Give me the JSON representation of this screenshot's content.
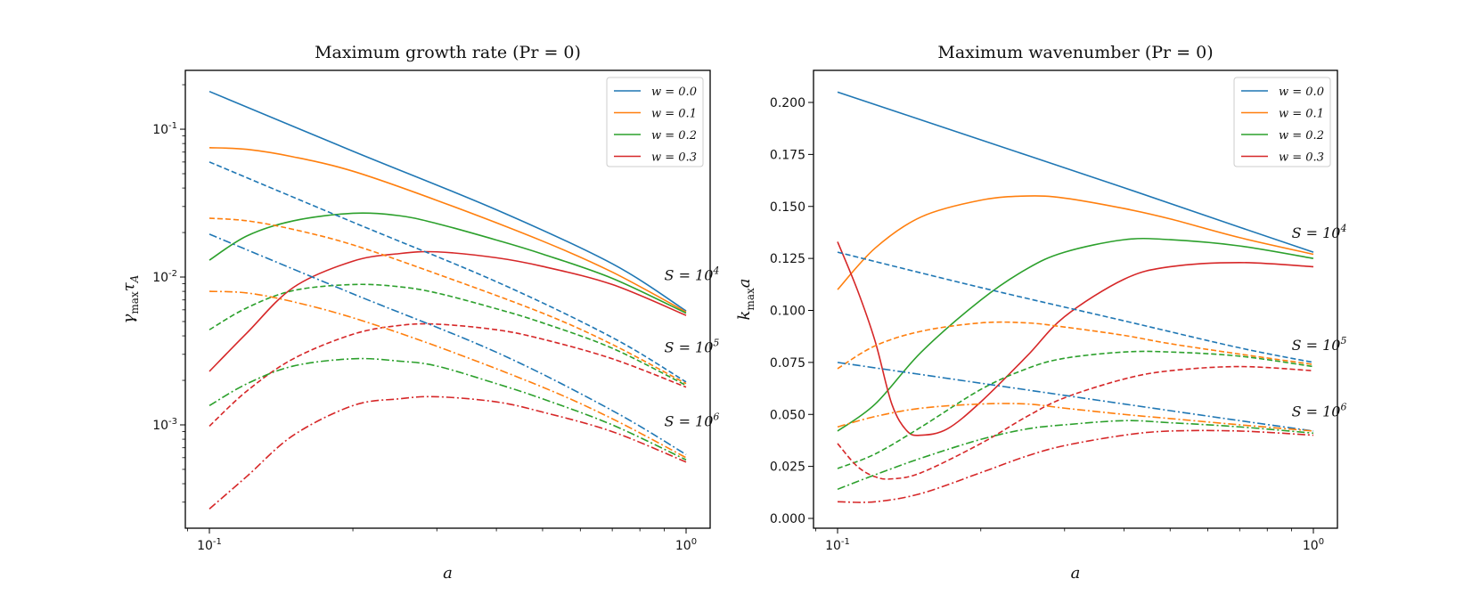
{
  "chart_data": [
    {
      "type": "line",
      "title": "Maximum growth rate (Pr = 0)",
      "xlabel": "a",
      "ylabel": "γmax τA",
      "xscale": "log",
      "yscale": "log",
      "xlim": [
        0.1,
        1.0
      ],
      "ylim": [
        0.0002,
        0.25
      ],
      "xticks": [
        {
          "value": 0.1,
          "label": "10-1"
        },
        {
          "value": 1.0,
          "label": "100"
        }
      ],
      "yticks": [
        {
          "value": 0.001,
          "label": "10-3"
        },
        {
          "value": 0.01,
          "label": "10-2"
        },
        {
          "value": 0.1,
          "label": "10-1"
        }
      ],
      "legend_position": "top-right",
      "legend": [
        {
          "label": "w = 0.0",
          "color": "#1f77b4"
        },
        {
          "label": "w = 0.1",
          "color": "#ff7f0e"
        },
        {
          "label": "w = 0.2",
          "color": "#2ca02c"
        },
        {
          "label": "w = 0.3",
          "color": "#d62728"
        }
      ],
      "annotations": [
        {
          "text": "S = 10^4",
          "x": 0.9,
          "y": 0.0095
        },
        {
          "text": "S = 10^5",
          "x": 0.9,
          "y": 0.0031
        },
        {
          "text": "S = 10^6",
          "x": 0.9,
          "y": 0.00098
        }
      ],
      "series": [
        {
          "S": "10^4",
          "w": "0.0",
          "style": "solid",
          "color": "#1f77b4",
          "x": [
            0.1,
            0.2,
            0.4,
            0.7,
            1.0
          ],
          "y": [
            0.18,
            0.071,
            0.0285,
            0.0123,
            0.0059
          ]
        },
        {
          "S": "10^4",
          "w": "0.1",
          "style": "solid",
          "color": "#ff7f0e",
          "x": [
            0.1,
            0.12,
            0.15,
            0.2,
            0.3,
            0.5,
            0.7,
            1.0
          ],
          "y": [
            0.075,
            0.073,
            0.065,
            0.052,
            0.033,
            0.0175,
            0.0108,
            0.0058
          ]
        },
        {
          "S": "10^4",
          "w": "0.2",
          "style": "solid",
          "color": "#2ca02c",
          "x": [
            0.1,
            0.12,
            0.15,
            0.2,
            0.25,
            0.3,
            0.4,
            0.5,
            0.7,
            1.0
          ],
          "y": [
            0.013,
            0.019,
            0.024,
            0.027,
            0.026,
            0.023,
            0.0178,
            0.0143,
            0.0098,
            0.0057
          ]
        },
        {
          "S": "10^4",
          "w": "0.3",
          "style": "solid",
          "color": "#d62728",
          "x": [
            0.1,
            0.12,
            0.15,
            0.2,
            0.25,
            0.3,
            0.4,
            0.5,
            0.7,
            1.0
          ],
          "y": [
            0.0023,
            0.0042,
            0.0085,
            0.0128,
            0.0144,
            0.0148,
            0.0135,
            0.0118,
            0.0089,
            0.0055
          ]
        },
        {
          "S": "10^5",
          "w": "0.0",
          "style": "dashed",
          "color": "#1f77b4",
          "x": [
            0.1,
            0.2,
            0.4,
            0.7,
            1.0
          ],
          "y": [
            0.06,
            0.0235,
            0.0093,
            0.0039,
            0.00195
          ]
        },
        {
          "S": "10^5",
          "w": "0.1",
          "style": "dashed",
          "color": "#ff7f0e",
          "x": [
            0.1,
            0.12,
            0.15,
            0.2,
            0.3,
            0.5,
            0.7,
            1.0
          ],
          "y": [
            0.025,
            0.024,
            0.021,
            0.0165,
            0.0105,
            0.0057,
            0.0035,
            0.0019
          ]
        },
        {
          "S": "10^5",
          "w": "0.2",
          "style": "dashed",
          "color": "#2ca02c",
          "x": [
            0.1,
            0.12,
            0.15,
            0.2,
            0.25,
            0.3,
            0.4,
            0.5,
            0.7,
            1.0
          ],
          "y": [
            0.0044,
            0.0062,
            0.0081,
            0.0089,
            0.0086,
            0.0078,
            0.0061,
            0.0049,
            0.0033,
            0.00185
          ]
        },
        {
          "S": "10^5",
          "w": "0.3",
          "style": "dashed",
          "color": "#d62728",
          "x": [
            0.1,
            0.12,
            0.15,
            0.2,
            0.25,
            0.3,
            0.4,
            0.5,
            0.7,
            1.0
          ],
          "y": [
            0.00098,
            0.0017,
            0.0028,
            0.0041,
            0.0047,
            0.0048,
            0.0044,
            0.0038,
            0.0028,
            0.0018
          ]
        },
        {
          "S": "10^6",
          "w": "0.0",
          "style": "dashdot",
          "color": "#1f77b4",
          "x": [
            0.1,
            0.2,
            0.4,
            0.7,
            1.0
          ],
          "y": [
            0.0195,
            0.0077,
            0.0031,
            0.00125,
            0.00063
          ]
        },
        {
          "S": "10^6",
          "w": "0.1",
          "style": "dashdot",
          "color": "#ff7f0e",
          "x": [
            0.1,
            0.12,
            0.15,
            0.2,
            0.3,
            0.5,
            0.7,
            1.0
          ],
          "y": [
            0.008,
            0.0078,
            0.0068,
            0.0053,
            0.0034,
            0.0018,
            0.0011,
            0.0006
          ]
        },
        {
          "S": "10^6",
          "w": "0.2",
          "style": "dashdot",
          "color": "#2ca02c",
          "x": [
            0.1,
            0.12,
            0.15,
            0.2,
            0.25,
            0.3,
            0.4,
            0.5,
            0.7,
            1.0
          ],
          "y": [
            0.00135,
            0.0019,
            0.0025,
            0.0028,
            0.0027,
            0.0025,
            0.0019,
            0.0015,
            0.001,
            0.00058
          ]
        },
        {
          "S": "10^6",
          "w": "0.3",
          "style": "dashdot",
          "color": "#d62728",
          "x": [
            0.1,
            0.12,
            0.15,
            0.2,
            0.25,
            0.3,
            0.4,
            0.5,
            0.7,
            1.0
          ],
          "y": [
            0.00027,
            0.00045,
            0.00085,
            0.00135,
            0.0015,
            0.00155,
            0.00143,
            0.00122,
            0.0009,
            0.00056
          ]
        }
      ]
    },
    {
      "type": "line",
      "title": "Maximum wavenumber (Pr = 0)",
      "xlabel": "a",
      "ylabel": "kmax a",
      "xscale": "log",
      "yscale": "linear",
      "xlim": [
        0.1,
        1.0
      ],
      "ylim": [
        0.0,
        0.2
      ],
      "xticks": [
        {
          "value": 0.1,
          "label": "10-1"
        },
        {
          "value": 1.0,
          "label": "100"
        }
      ],
      "yticks": [
        {
          "value": 0.0,
          "label": "0.000"
        },
        {
          "value": 0.025,
          "label": "0.025"
        },
        {
          "value": 0.05,
          "label": "0.050"
        },
        {
          "value": 0.075,
          "label": "0.075"
        },
        {
          "value": 0.1,
          "label": "0.100"
        },
        {
          "value": 0.125,
          "label": "0.125"
        },
        {
          "value": 0.15,
          "label": "0.150"
        },
        {
          "value": 0.175,
          "label": "0.175"
        },
        {
          "value": 0.2,
          "label": "0.200"
        }
      ],
      "legend_position": "top-right",
      "legend": [
        {
          "label": "w = 0.0",
          "color": "#1f77b4"
        },
        {
          "label": "w = 0.1",
          "color": "#ff7f0e"
        },
        {
          "label": "w = 0.2",
          "color": "#2ca02c"
        },
        {
          "label": "w = 0.3",
          "color": "#d62728"
        }
      ],
      "annotations": [
        {
          "text": "S = 10^4",
          "x": 0.9,
          "y": 0.135
        },
        {
          "text": "S = 10^5",
          "x": 0.9,
          "y": 0.081
        },
        {
          "text": "S = 10^6",
          "x": 0.9,
          "y": 0.049
        }
      ],
      "series": [
        {
          "S": "10^4",
          "w": "0.0",
          "style": "solid",
          "color": "#1f77b4",
          "x": [
            0.1,
            0.2,
            0.4,
            0.7,
            1.0
          ],
          "y": [
            0.205,
            0.182,
            0.159,
            0.14,
            0.128
          ]
        },
        {
          "S": "10^4",
          "w": "0.1",
          "style": "solid",
          "color": "#ff7f0e",
          "x": [
            0.1,
            0.12,
            0.15,
            0.2,
            0.25,
            0.3,
            0.4,
            0.5,
            0.7,
            1.0
          ],
          "y": [
            0.11,
            0.13,
            0.145,
            0.153,
            0.155,
            0.154,
            0.149,
            0.144,
            0.135,
            0.127
          ]
        },
        {
          "S": "10^4",
          "w": "0.2",
          "style": "solid",
          "color": "#2ca02c",
          "x": [
            0.1,
            0.12,
            0.15,
            0.2,
            0.25,
            0.3,
            0.4,
            0.5,
            0.7,
            1.0
          ],
          "y": [
            0.042,
            0.055,
            0.08,
            0.105,
            0.12,
            0.128,
            0.134,
            0.134,
            0.131,
            0.125
          ]
        },
        {
          "S": "10^4",
          "w": "0.3",
          "style": "solid",
          "color": "#d62728",
          "x": [
            0.1,
            0.11,
            0.12,
            0.13,
            0.14,
            0.15,
            0.17,
            0.2,
            0.25,
            0.3,
            0.4,
            0.5,
            0.7,
            1.0
          ],
          "y": [
            0.133,
            0.11,
            0.085,
            0.055,
            0.042,
            0.04,
            0.043,
            0.056,
            0.078,
            0.097,
            0.115,
            0.121,
            0.123,
            0.121
          ]
        },
        {
          "S": "10^5",
          "w": "0.0",
          "style": "dashed",
          "color": "#1f77b4",
          "x": [
            0.1,
            0.2,
            0.4,
            0.7,
            1.0
          ],
          "y": [
            0.128,
            0.111,
            0.095,
            0.082,
            0.075
          ]
        },
        {
          "S": "10^5",
          "w": "0.1",
          "style": "dashed",
          "color": "#ff7f0e",
          "x": [
            0.1,
            0.12,
            0.15,
            0.2,
            0.25,
            0.3,
            0.4,
            0.5,
            0.7,
            1.0
          ],
          "y": [
            0.072,
            0.083,
            0.09,
            0.094,
            0.094,
            0.092,
            0.088,
            0.084,
            0.079,
            0.074
          ]
        },
        {
          "S": "10^5",
          "w": "0.2",
          "style": "dashed",
          "color": "#2ca02c",
          "x": [
            0.1,
            0.12,
            0.15,
            0.2,
            0.25,
            0.3,
            0.4,
            0.5,
            0.7,
            1.0
          ],
          "y": [
            0.024,
            0.031,
            0.044,
            0.062,
            0.072,
            0.077,
            0.08,
            0.08,
            0.078,
            0.073
          ]
        },
        {
          "S": "10^5",
          "w": "0.3",
          "style": "dashed",
          "color": "#d62728",
          "x": [
            0.1,
            0.11,
            0.12,
            0.13,
            0.15,
            0.2,
            0.25,
            0.3,
            0.4,
            0.5,
            0.7,
            1.0
          ],
          "y": [
            0.036,
            0.025,
            0.02,
            0.019,
            0.022,
            0.036,
            0.049,
            0.058,
            0.067,
            0.071,
            0.073,
            0.071
          ]
        },
        {
          "S": "10^6",
          "w": "0.0",
          "style": "dashdot",
          "color": "#1f77b4",
          "x": [
            0.1,
            0.2,
            0.4,
            0.7,
            1.0
          ],
          "y": [
            0.075,
            0.065,
            0.055,
            0.047,
            0.042
          ]
        },
        {
          "S": "10^6",
          "w": "0.1",
          "style": "dashdot",
          "color": "#ff7f0e",
          "x": [
            0.1,
            0.12,
            0.15,
            0.2,
            0.25,
            0.3,
            0.4,
            0.5,
            0.7,
            1.0
          ],
          "y": [
            0.044,
            0.049,
            0.053,
            0.055,
            0.055,
            0.053,
            0.05,
            0.048,
            0.045,
            0.042
          ]
        },
        {
          "S": "10^6",
          "w": "0.2",
          "style": "dashdot",
          "color": "#2ca02c",
          "x": [
            0.1,
            0.12,
            0.15,
            0.2,
            0.25,
            0.3,
            0.4,
            0.5,
            0.7,
            1.0
          ],
          "y": [
            0.014,
            0.021,
            0.029,
            0.038,
            0.043,
            0.045,
            0.047,
            0.046,
            0.044,
            0.041
          ]
        },
        {
          "S": "10^6",
          "w": "0.3",
          "style": "dashdot",
          "color": "#d62728",
          "x": [
            0.1,
            0.12,
            0.15,
            0.2,
            0.25,
            0.3,
            0.4,
            0.5,
            0.7,
            1.0
          ],
          "y": [
            0.008,
            0.008,
            0.012,
            0.022,
            0.03,
            0.035,
            0.04,
            0.042,
            0.042,
            0.04
          ]
        }
      ]
    }
  ]
}
